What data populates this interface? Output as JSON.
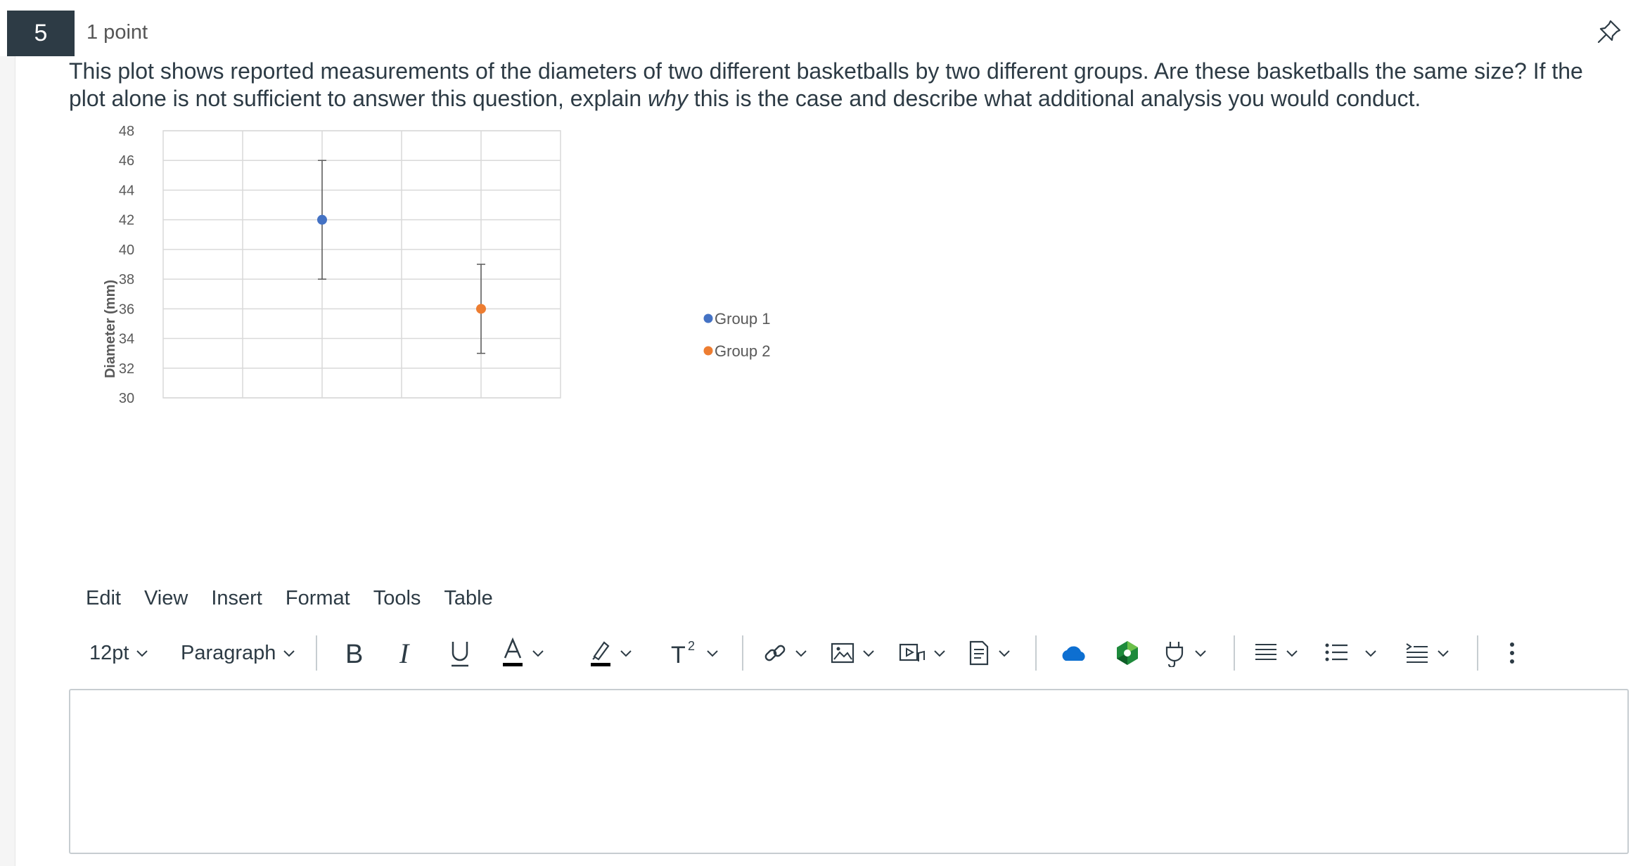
{
  "question": {
    "number": "5",
    "points": "1 point",
    "text_before_em": "This plot shows reported measurements of the diameters of two different basketballs by two different groups. Are these basketballs the same size?  If the plot alone is not sufficient to answer this question, explain ",
    "text_em": "why",
    "text_after_em": " this is the case and describe what additional analysis you would conduct."
  },
  "chart_data": {
    "type": "scatter",
    "title": "",
    "xlabel": "",
    "ylabel": "Diameter (mm)",
    "ylim": [
      30,
      48
    ],
    "yticks": [
      "48",
      "46",
      "44",
      "42",
      "40",
      "38",
      "36",
      "34",
      "32",
      "30"
    ],
    "xlim": [
      0,
      5
    ],
    "grid": true,
    "legend_placement": "right",
    "series": [
      {
        "name": "Group 1",
        "color": "#4472c4",
        "x": 2,
        "y": 42,
        "err_low": 38,
        "err_high": 46
      },
      {
        "name": "Group 2",
        "color": "#ed7d31",
        "x": 4,
        "y": 36,
        "err_low": 33,
        "err_high": 39
      }
    ]
  },
  "menubar": [
    "Edit",
    "View",
    "Insert",
    "Format",
    "Tools",
    "Table"
  ],
  "toolbar": {
    "font_size": "12pt",
    "block_format": "Paragraph",
    "icons": [
      "bold-icon",
      "italic-icon",
      "underline-icon",
      "text-color-icon",
      "highlight-icon",
      "superscript-icon",
      "link-icon",
      "image-icon",
      "media-icon",
      "document-icon",
      "onedrive-icon",
      "apps-icon",
      "plugin-icon",
      "align-icon",
      "bullet-list-icon",
      "indent-icon",
      "more-icon"
    ]
  },
  "editor": {
    "value": ""
  }
}
